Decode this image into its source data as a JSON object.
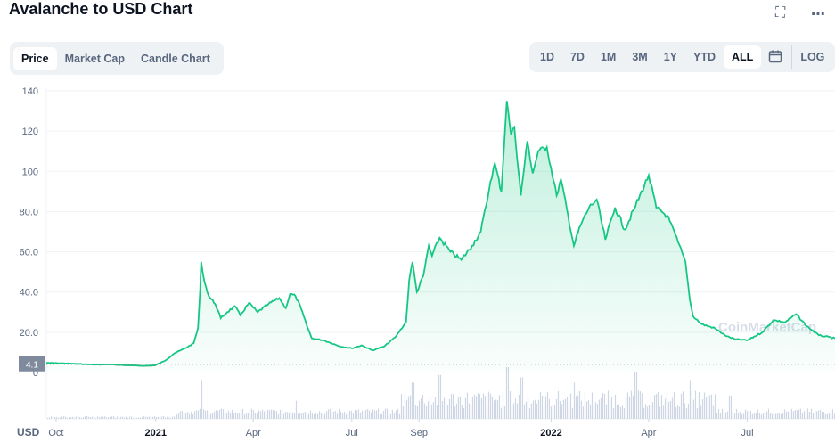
{
  "header": {
    "title": "Avalanche to USD Chart",
    "expand_icon": "fullscreen-icon",
    "more_icon": "more-dots-icon"
  },
  "tabs": [
    {
      "label": "Price",
      "active": true
    },
    {
      "label": "Market Cap",
      "active": false
    },
    {
      "label": "Candle Chart",
      "active": false
    }
  ],
  "ranges": [
    {
      "label": "1D",
      "active": false
    },
    {
      "label": "7D",
      "active": false
    },
    {
      "label": "1M",
      "active": false
    },
    {
      "label": "3M",
      "active": false
    },
    {
      "label": "1Y",
      "active": false
    },
    {
      "label": "YTD",
      "active": false
    },
    {
      "label": "ALL",
      "active": true
    }
  ],
  "calendar_icon": "calendar-icon",
  "log_label": "LOG",
  "currency_label": "USD",
  "watermark": "CoinMarketCap",
  "colors": {
    "up": "#16c784",
    "down": "#ea3943",
    "volume": "#cfd6e4",
    "grid": "#eff2f5"
  },
  "chart_data": {
    "type": "area",
    "title": "Avalanche to USD Chart",
    "xlabel": "",
    "ylabel": "",
    "ylim": [
      0,
      140
    ],
    "yticks": [
      "20.0",
      "40.0",
      "60.0",
      "80.0",
      "100",
      "120",
      "140"
    ],
    "y_zero_label": "0",
    "baseline_label": "4.1",
    "baseline_value": 4.1,
    "xticks": [
      {
        "label": "Oct",
        "date": "2020-10-01"
      },
      {
        "label": "2021",
        "date": "2021-01-01"
      },
      {
        "label": "Apr",
        "date": "2021-04-01"
      },
      {
        "label": "Jul",
        "date": "2021-07-01"
      },
      {
        "label": "Sep",
        "date": "2021-09-01"
      },
      {
        "label": "2022",
        "date": "2022-01-01"
      },
      {
        "label": "Apr",
        "date": "2022-04-01"
      },
      {
        "label": "Jul",
        "date": "2022-07-01"
      }
    ],
    "xrange": [
      "2020-09-22",
      "2022-09-20"
    ],
    "series": [
      {
        "points": [
          [
            "2020-09-22",
            4.8
          ],
          [
            "2020-10-05",
            4.6
          ],
          [
            "2020-10-20",
            4.3
          ],
          [
            "2020-11-05",
            3.9
          ],
          [
            "2020-11-20",
            4.0
          ],
          [
            "2020-12-05",
            3.6
          ],
          [
            "2020-12-20",
            3.3
          ],
          [
            "2020-12-31",
            3.5
          ],
          [
            "2021-01-10",
            6.0
          ],
          [
            "2021-01-18",
            9.5
          ],
          [
            "2021-01-28",
            12.0
          ],
          [
            "2021-02-05",
            14.5
          ],
          [
            "2021-02-09",
            22.0
          ],
          [
            "2021-02-11",
            41.0
          ],
          [
            "2021-02-12",
            55.0
          ],
          [
            "2021-02-15",
            45.0
          ],
          [
            "2021-02-19",
            38.0
          ],
          [
            "2021-02-25",
            34.0
          ],
          [
            "2021-03-02",
            27.0
          ],
          [
            "2021-03-08",
            30.0
          ],
          [
            "2021-03-15",
            33.0
          ],
          [
            "2021-03-20",
            28.5
          ],
          [
            "2021-03-28",
            34.5
          ],
          [
            "2021-04-05",
            30.0
          ],
          [
            "2021-04-15",
            34.0
          ],
          [
            "2021-04-25",
            37.0
          ],
          [
            "2021-05-01",
            32.0
          ],
          [
            "2021-05-05",
            39.0
          ],
          [
            "2021-05-10",
            38.0
          ],
          [
            "2021-05-15",
            32.0
          ],
          [
            "2021-05-20",
            24.0
          ],
          [
            "2021-05-25",
            17.0
          ],
          [
            "2021-06-05",
            16.0
          ],
          [
            "2021-06-20",
            13.0
          ],
          [
            "2021-07-01",
            12.0
          ],
          [
            "2021-07-10",
            13.5
          ],
          [
            "2021-07-20",
            11.0
          ],
          [
            "2021-07-31",
            13.0
          ],
          [
            "2021-08-10",
            17.5
          ],
          [
            "2021-08-20",
            25.0
          ],
          [
            "2021-08-23",
            46.0
          ],
          [
            "2021-08-26",
            55.0
          ],
          [
            "2021-08-30",
            40.0
          ],
          [
            "2021-09-05",
            48.0
          ],
          [
            "2021-09-10",
            63.0
          ],
          [
            "2021-09-13",
            58.0
          ],
          [
            "2021-09-20",
            67.0
          ],
          [
            "2021-09-30",
            60.0
          ],
          [
            "2021-10-10",
            56.0
          ],
          [
            "2021-10-20",
            63.0
          ],
          [
            "2021-10-28",
            70.0
          ],
          [
            "2021-11-02",
            83.0
          ],
          [
            "2021-11-06",
            95.0
          ],
          [
            "2021-11-10",
            104.0
          ],
          [
            "2021-11-16",
            90.0
          ],
          [
            "2021-11-21",
            135.0
          ],
          [
            "2021-11-25",
            118.0
          ],
          [
            "2021-11-28",
            122.0
          ],
          [
            "2021-12-04",
            88.0
          ],
          [
            "2021-12-10",
            115.0
          ],
          [
            "2021-12-15",
            99.0
          ],
          [
            "2021-12-20",
            110.0
          ],
          [
            "2021-12-28",
            112.0
          ],
          [
            "2022-01-06",
            88.0
          ],
          [
            "2022-01-10",
            96.0
          ],
          [
            "2022-01-22",
            63.0
          ],
          [
            "2022-01-28",
            73.0
          ],
          [
            "2022-02-05",
            82.0
          ],
          [
            "2022-02-12",
            86.0
          ],
          [
            "2022-02-20",
            66.0
          ],
          [
            "2022-03-01",
            82.0
          ],
          [
            "2022-03-10",
            71.0
          ],
          [
            "2022-03-20",
            83.0
          ],
          [
            "2022-04-01",
            98.0
          ],
          [
            "2022-04-08",
            82.0
          ],
          [
            "2022-04-18",
            78.0
          ],
          [
            "2022-04-28",
            65.0
          ],
          [
            "2022-05-05",
            55.0
          ],
          [
            "2022-05-09",
            36.0
          ],
          [
            "2022-05-12",
            28.0
          ],
          [
            "2022-05-20",
            24.0
          ],
          [
            "2022-06-01",
            22.0
          ],
          [
            "2022-06-12",
            18.0
          ],
          [
            "2022-06-20",
            16.5
          ],
          [
            "2022-07-01",
            16.0
          ],
          [
            "2022-07-15",
            20.0
          ],
          [
            "2022-07-25",
            26.0
          ],
          [
            "2022-08-05",
            25.0
          ],
          [
            "2022-08-15",
            29.0
          ],
          [
            "2022-08-25",
            23.0
          ],
          [
            "2022-09-05",
            18.5
          ],
          [
            "2022-09-20",
            17.0
          ]
        ]
      }
    ]
  }
}
